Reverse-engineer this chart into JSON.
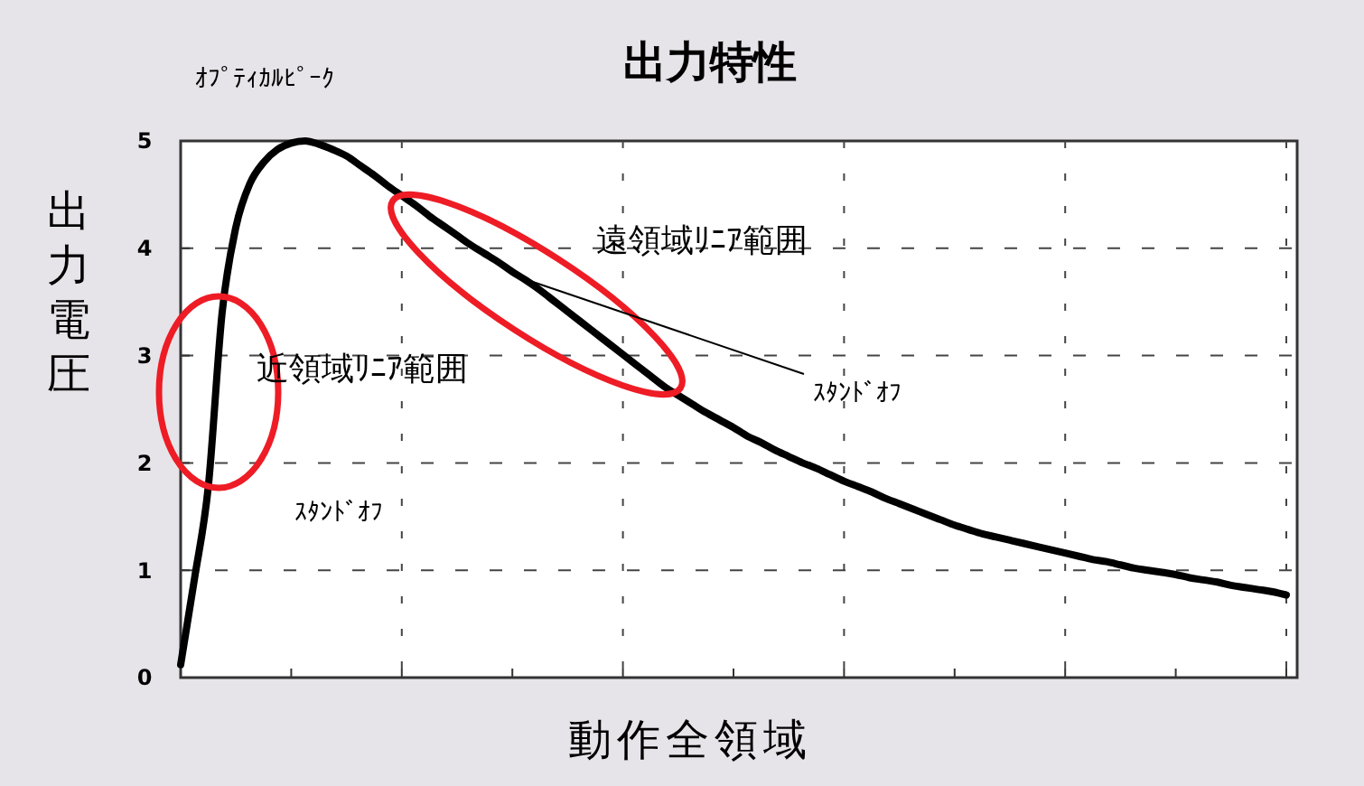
{
  "chart_data": {
    "type": "line",
    "title": "出力特性",
    "xlabel": "動作全領域",
    "ylabel": "出力電圧",
    "categories": [
      null,
      null,
      null,
      null,
      null,
      null,
      null,
      null,
      null,
      null,
      null,
      null,
      null,
      null,
      null,
      null,
      null,
      null,
      null,
      null,
      null,
      null,
      null,
      null,
      null,
      null,
      null,
      null,
      null,
      null,
      null,
      null,
      null,
      null,
      null,
      null,
      null,
      null,
      null,
      null,
      null,
      null,
      null,
      null,
      null,
      null,
      null,
      null,
      null,
      null,
      null,
      null,
      null,
      null,
      null,
      null,
      null,
      null,
      null,
      null,
      null,
      null,
      null,
      null,
      null,
      null,
      null,
      null,
      null,
      null,
      null,
      null,
      null,
      null,
      null,
      null,
      null,
      null,
      null,
      null,
      null
    ],
    "series": [
      {
        "color": "#000000",
        "values": [
          0.12,
          0.92,
          1.78,
          3.4,
          4.2,
          4.6,
          4.8,
          4.92,
          4.98,
          5.0,
          4.97,
          4.92,
          4.86,
          4.77,
          4.68,
          4.58,
          4.49,
          4.4,
          4.3,
          4.21,
          4.12,
          4.03,
          3.95,
          3.87,
          3.78,
          3.7,
          3.61,
          3.51,
          3.41,
          3.31,
          3.21,
          3.11,
          3.01,
          2.91,
          2.81,
          2.71,
          2.63,
          2.55,
          2.47,
          2.4,
          2.33,
          2.25,
          2.19,
          2.12,
          2.06,
          2.0,
          1.95,
          1.89,
          1.83,
          1.78,
          1.73,
          1.67,
          1.62,
          1.57,
          1.52,
          1.47,
          1.42,
          1.38,
          1.34,
          1.31,
          1.28,
          1.25,
          1.22,
          1.19,
          1.16,
          1.13,
          1.1,
          1.08,
          1.05,
          1.02,
          1.0,
          0.98,
          0.96,
          0.93,
          0.91,
          0.89,
          0.86,
          0.84,
          0.82,
          0.8,
          0.77
        ]
      }
    ],
    "ylim": [
      0,
      5
    ],
    "yticks": [
      0,
      1,
      2,
      3,
      4,
      5
    ],
    "grid": true,
    "marker": "none",
    "line_style": "solid",
    "annotations": [
      "ｵﾌﾟﾃｨｶﾙﾋﾟｰｸ",
      "遠領域ﾘﾆｱ範囲",
      "近領域ﾘﾆｱ範囲",
      "ｽﾀﾝﾄﾞｵﾌ",
      "ｽﾀﾝﾄﾞｵﾌ"
    ]
  }
}
